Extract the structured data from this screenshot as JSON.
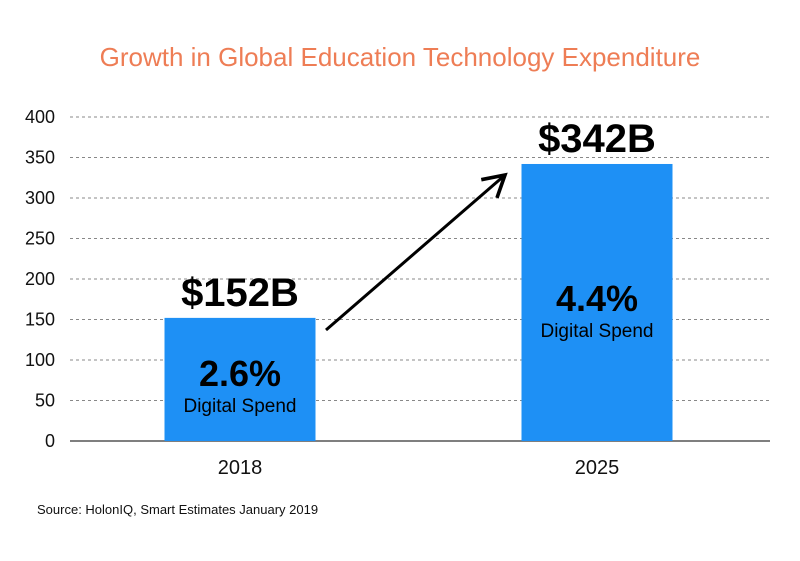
{
  "chart_data": {
    "type": "bar",
    "title": "Growth in Global Education Technology Expenditure",
    "categories": [
      "2018",
      "2025"
    ],
    "values": [
      152,
      342
    ],
    "value_labels": [
      "$152B",
      "$342B"
    ],
    "percent_labels": [
      "2.6%",
      "4.4%"
    ],
    "sub_labels": [
      "Digital Spend",
      "Digital Spend"
    ],
    "ylim": [
      0,
      400
    ],
    "yticks": [
      0,
      50,
      100,
      150,
      200,
      250,
      300,
      350,
      400
    ],
    "grid": true,
    "source": "Source: HolonIQ, Smart Estimates January 2019",
    "colors": {
      "title": "#EE7D55",
      "bar": "#1E90F5",
      "grid": "#888888",
      "axis": "#555555",
      "arrow": "#000000"
    }
  }
}
